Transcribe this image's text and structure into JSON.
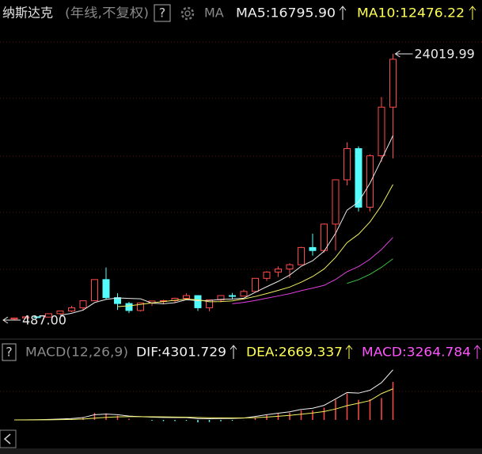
{
  "chart_data": [
    {
      "type": "candlestick",
      "title": "纳斯达克",
      "subtitle": "(年线,不复权)",
      "indicator": "MA",
      "legend_labels": [
        {
          "label": "MA5:16795.90",
          "color": "#f0f0f0"
        },
        {
          "label": "MA10:12476.22",
          "color": "#ffff54"
        }
      ],
      "up_color": "#ff4a4a",
      "down_color": "#54fcfc",
      "candles": {
        "open": [
          586,
          677,
          777,
          752,
          1052,
          1291,
          1570,
          2193,
          4069,
          2471,
          1950,
          1335,
          2003,
          2175,
          2205,
          2415,
          2652,
          1577,
          2269,
          2653,
          2605,
          3020,
          4177,
          4736,
          5007,
          5383,
          6903,
          6635,
          8973,
          12888,
          15645,
          10466,
          15011,
          19311
        ],
        "high": [
          677,
          803,
          804,
          1069,
          1328,
          1746,
          2200,
          4090,
          5132,
          2859,
          2098,
          2010,
          2178,
          2278,
          2470,
          2861,
          2661,
          2291,
          2676,
          2887,
          3196,
          4177,
          4814,
          5232,
          5512,
          6969,
          8133,
          9022,
          12899,
          16212,
          15852,
          15150,
          20204,
          24019.99
        ],
        "low": [
          487,
          645,
          691,
          740,
          978,
          1194,
          1357,
          2193,
          2288,
          1387,
          1108,
          1253,
          1750,
          1889,
          2012,
          2340,
          1295,
          1265,
          2061,
          2298,
          2603,
          3020,
          3946,
          4292,
          4209,
          5383,
          6190,
          6457,
          6631,
          12397,
          10089,
          10089,
          14477,
          14784
        ],
        "close": [
          677,
          777,
          752,
          1052,
          1291,
          1570,
          2193,
          4069,
          2471,
          1950,
          1335,
          2003,
          2175,
          2205,
          2415,
          2652,
          1577,
          2269,
          2653,
          2605,
          3020,
          4177,
          4736,
          5007,
          5383,
          6903,
          6635,
          8973,
          12888,
          15645,
          10466,
          15011,
          19311,
          23542
        ]
      },
      "lines": [
        {
          "color": "#e8e8e8",
          "values": [
            null,
            null,
            null,
            null,
            910,
            1088,
            1372,
            2035,
            2319,
            2451,
            2404,
            2366,
            1987,
            1934,
            2027,
            2290,
            2205,
            2224,
            2313,
            2351,
            2425,
            2945,
            3438,
            3909,
            4465,
            5241,
            5733,
            6580,
            8156,
            10209,
            10921,
            12597,
            14664,
            16795.9
          ]
        },
        {
          "color": "#f0f060",
          "values": [
            null,
            null,
            null,
            null,
            null,
            null,
            null,
            null,
            null,
            1680,
            1746,
            1869,
            2011,
            2126,
            2239,
            2347,
            2285,
            2105,
            2123,
            2189,
            2357,
            2575,
            2831,
            3111,
            3408,
            3833,
            4339,
            5009,
            6033,
            7337,
            8081,
            9165,
            10622,
            12476.22
          ]
        },
        {
          "color": "#e040e0",
          "values": [
            null,
            null,
            null,
            null,
            null,
            null,
            null,
            null,
            null,
            null,
            null,
            null,
            null,
            null,
            null,
            null,
            null,
            null,
            null,
            1935,
            2052,
            2222,
            2421,
            2619,
            2823,
            3090,
            3312,
            3557,
            4078,
            4763,
            5219,
            5870,
            6727,
            7793
          ]
        },
        {
          "color": "#3cc03c",
          "values": [
            null,
            null,
            null,
            null,
            null,
            null,
            null,
            null,
            null,
            null,
            null,
            null,
            null,
            null,
            null,
            null,
            null,
            null,
            null,
            null,
            null,
            null,
            null,
            null,
            null,
            null,
            null,
            null,
            null,
            3735,
            4062,
            4536,
            5155,
            5904
          ]
        }
      ],
      "annotations": [
        {
          "value": 24019.99,
          "label": "24019.99"
        },
        {
          "value": 487,
          "label": "487.00"
        }
      ],
      "ylim": [
        -984,
        26682
      ]
    },
    {
      "type": "macd",
      "title": "MACD(12,26,9)",
      "legend_labels": [
        {
          "label": "DIF:4301.729",
          "color": "#f0f0f0"
        },
        {
          "label": "DEA:2669.337",
          "color": "#ffff54"
        },
        {
          "label": "MACD:3264.784",
          "color": "#ff54ff"
        }
      ],
      "series": [
        {
          "color": "#f0f0f0",
          "values": [
            0,
            10,
            15,
            40,
            80,
            120,
            200,
            450,
            500,
            450,
            330,
            280,
            240,
            210,
            200,
            200,
            110,
            100,
            120,
            130,
            160,
            300,
            450,
            580,
            700,
            900,
            1000,
            1250,
            1800,
            2350,
            2300,
            2550,
            3200,
            4301.729
          ]
        },
        {
          "color": "#f0f060",
          "values": [
            0,
            2,
            5,
            12,
            26,
            45,
            76,
            151,
            221,
            267,
            280,
            280,
            272,
            260,
            248,
            238,
            213,
            190,
            176,
            167,
            166,
            193,
            244,
            311,
            389,
            491,
            593,
            724,
            939,
            1221,
            1437,
            1660,
            2261,
            2669.337
          ]
        }
      ],
      "bars": {
        "up_color": "#ff4a4a",
        "down_color": "#54fcfc",
        "values": [
          0,
          16,
          20,
          56,
          108,
          150,
          248,
          598,
          558,
          366,
          100,
          0,
          -64,
          -100,
          -96,
          -76,
          -206,
          -180,
          -112,
          -74,
          -12,
          214,
          412,
          538,
          622,
          818,
          814,
          1052,
          1722,
          2258,
          1726,
          1780,
          1878,
          3264.784
        ]
      },
      "ylim": [
        -2380,
        4760
      ]
    }
  ]
}
